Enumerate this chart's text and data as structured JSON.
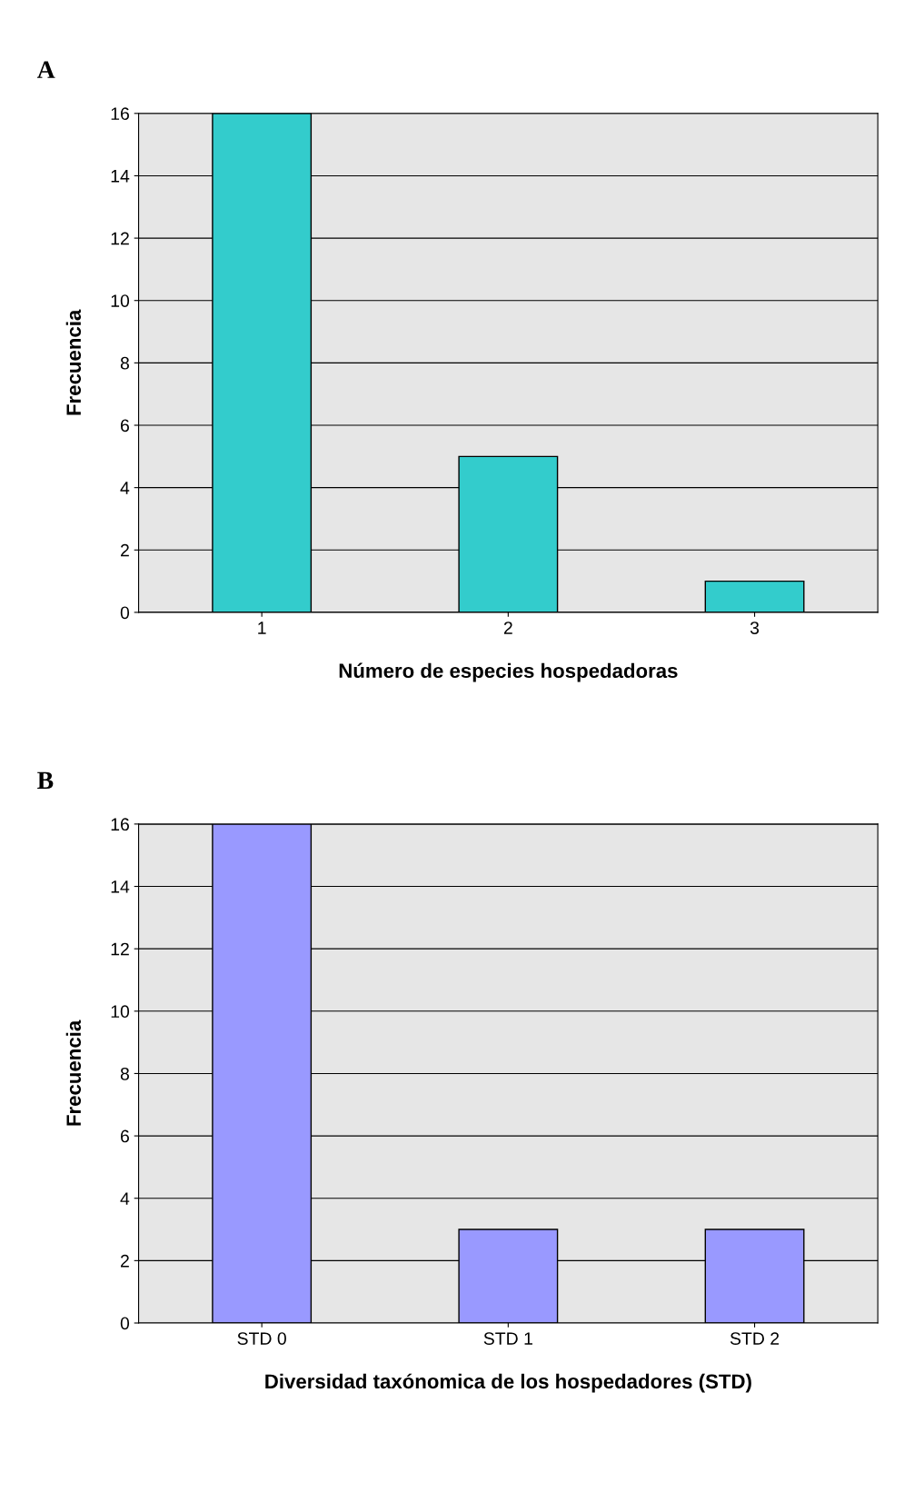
{
  "chart_data": [
    {
      "type": "bar",
      "title": "A",
      "xlabel": "Número de especies hospedadoras",
      "ylabel": "Frecuencia",
      "categories": [
        "1",
        "2",
        "3"
      ],
      "values": [
        16,
        5,
        1
      ],
      "color": "#33cccc",
      "ylim": [
        0,
        16
      ],
      "yticks": [
        0,
        2,
        4,
        6,
        8,
        10,
        12,
        14,
        16
      ],
      "grid": "y"
    },
    {
      "type": "bar",
      "title": "B",
      "xlabel": "Diversidad taxónomica de los hospedadores (STD)",
      "ylabel": "Frecuencia",
      "categories": [
        "STD 0",
        "STD 1",
        "STD 2"
      ],
      "values": [
        16,
        3,
        3
      ],
      "color": "#9999ff",
      "ylim": [
        0,
        16
      ],
      "yticks": [
        0,
        2,
        4,
        6,
        8,
        10,
        12,
        14,
        16
      ],
      "grid": "y"
    }
  ]
}
